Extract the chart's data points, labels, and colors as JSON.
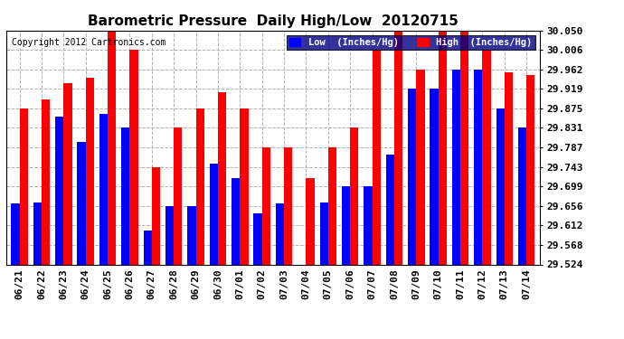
{
  "title": "Barometric Pressure  Daily High/Low  20120715",
  "copyright": "Copyright 2012 Cartronics.com",
  "dates": [
    "06/21",
    "06/22",
    "06/23",
    "06/24",
    "06/25",
    "06/26",
    "06/27",
    "06/28",
    "06/29",
    "06/30",
    "07/01",
    "07/02",
    "07/03",
    "07/04",
    "07/05",
    "07/06",
    "07/07",
    "07/08",
    "07/09",
    "07/10",
    "07/11",
    "07/12",
    "07/13",
    "07/14"
  ],
  "low": [
    29.662,
    29.663,
    29.856,
    29.8,
    29.862,
    29.831,
    29.6,
    29.656,
    29.656,
    29.75,
    29.718,
    29.638,
    29.662,
    29.524,
    29.663,
    29.699,
    29.699,
    29.77,
    29.919,
    29.919,
    29.962,
    29.962,
    29.875,
    29.831
  ],
  "high": [
    29.875,
    29.894,
    29.931,
    29.944,
    30.05,
    30.006,
    29.743,
    29.831,
    29.875,
    29.912,
    29.875,
    29.787,
    29.787,
    29.718,
    29.787,
    29.831,
    30.006,
    30.05,
    29.962,
    30.05,
    30.05,
    30.006,
    29.956,
    29.95
  ],
  "bar_color_low": "#0000ff",
  "bar_color_high": "#ff0000",
  "ylim_min": 29.524,
  "ylim_max": 30.05,
  "yticks": [
    29.524,
    29.568,
    29.612,
    29.656,
    29.699,
    29.743,
    29.787,
    29.831,
    29.875,
    29.919,
    29.962,
    30.006,
    30.05
  ],
  "background_color": "#ffffff",
  "plot_bg_color": "#ffffff",
  "grid_color": "#b0b0b0",
  "title_fontsize": 11,
  "legend_fontsize": 7.5,
  "tick_fontsize": 8,
  "copyright_fontsize": 7
}
